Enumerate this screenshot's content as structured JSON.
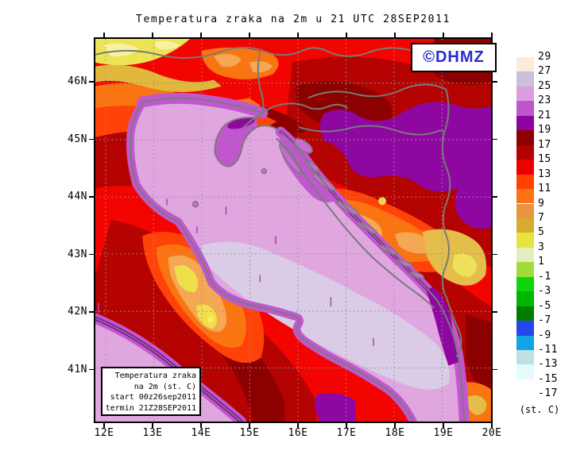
{
  "title": "Temperatura zraka na 2m u 21 UTC 28SEP2011",
  "branding": {
    "label": "©DHMZ",
    "color": "#2a2ad4"
  },
  "info_box": {
    "lines": [
      "Temperatura zraka",
      "na 2m (st. C)",
      "start 00z26sep2011",
      "termin 21Z28SEP2011"
    ]
  },
  "axes": {
    "x_labels": [
      "12E",
      "13E",
      "14E",
      "15E",
      "16E",
      "17E",
      "18E",
      "19E",
      "20E"
    ],
    "y_labels": [
      "46N",
      "45N",
      "44N",
      "43N",
      "42N",
      "41N"
    ]
  },
  "legend": {
    "unit": "(st. C)",
    "bottom_label": "-17",
    "entries": [
      {
        "label": "29",
        "color": "#fcebd8"
      },
      {
        "label": "27",
        "color": "#cbc0db"
      },
      {
        "label": "25",
        "color": "#db9edd"
      },
      {
        "label": "23",
        "color": "#c055ce"
      },
      {
        "label": "21",
        "color": "#8e04a1"
      },
      {
        "label": "19",
        "color": "#8d0000"
      },
      {
        "label": "17",
        "color": "#b30000"
      },
      {
        "label": "15",
        "color": "#eb0000"
      },
      {
        "label": "13",
        "color": "#ff4200"
      },
      {
        "label": "11",
        "color": "#fa7414"
      },
      {
        "label": "9",
        "color": "#e9953f"
      },
      {
        "label": "7",
        "color": "#d5ac2f"
      },
      {
        "label": "5",
        "color": "#e7e23c"
      },
      {
        "label": "3",
        "color": "#e2efbc"
      },
      {
        "label": "1",
        "color": "#a3dc3a"
      },
      {
        "label": "-1",
        "color": "#0ed60e"
      },
      {
        "label": "-3",
        "color": "#00b400"
      },
      {
        "label": "-5",
        "color": "#007d00"
      },
      {
        "label": "-7",
        "color": "#2846ef"
      },
      {
        "label": "-9",
        "color": "#12a4e4"
      },
      {
        "label": "-11",
        "color": "#bfe0e7"
      },
      {
        "label": "-13",
        "color": "#e5fbfb"
      },
      {
        "label": "-15",
        "color": "#ffffff"
      }
    ]
  }
}
